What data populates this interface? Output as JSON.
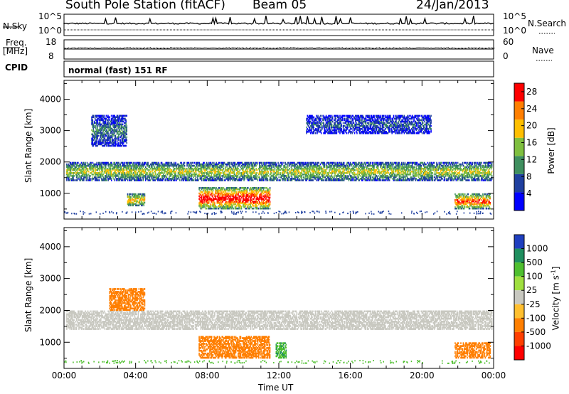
{
  "header": {
    "station": "South Pole Station (fitACF)",
    "beam": "Beam 05",
    "date": "24/Jan/2013"
  },
  "noise_panel": {
    "left_label": "N.Sky",
    "left_ticks": [
      "10^5",
      "10^0"
    ],
    "right_label": "N.Search",
    "right_ticks": [
      "10^5",
      "10^0"
    ]
  },
  "freq_panel": {
    "left_label_line1": "Freq.",
    "left_label_line2": "[MHz]",
    "left_ticks": [
      "18",
      "8"
    ],
    "right_label": "Nave",
    "right_ticks": [
      "60",
      "0"
    ]
  },
  "cpid_panel": {
    "label": "CPID",
    "text": "normal (fast) 151 RF"
  },
  "chart_data": [
    {
      "type": "heatmap",
      "title": "",
      "xlabel": "Time UT",
      "ylabel": "Slant Range [km]",
      "xlim": [
        "00:00",
        "24:00"
      ],
      "ylim": [
        180,
        4600
      ],
      "x_ticks": [
        "00:00",
        "04:00",
        "08:00",
        "12:00",
        "16:00",
        "20:00",
        "00:00"
      ],
      "y_ticks": [
        1000,
        2000,
        3000,
        4000
      ],
      "colorbar": {
        "label": "Power [dB]",
        "ticks": [
          4,
          8,
          12,
          16,
          20,
          24,
          28
        ],
        "range": [
          0,
          30
        ],
        "colors": [
          "#0000ff",
          "#1f3f9f",
          "#3f8f5f",
          "#7fbf3f",
          "#ffbf00",
          "#ff7f00",
          "#ff0000"
        ]
      },
      "regions": [
        {
          "t0": 0.1,
          "t1": 23.9,
          "r0": 1400,
          "r1": 2000,
          "value": 14
        },
        {
          "t0": 1.5,
          "t1": 3.5,
          "r0": 2500,
          "r1": 3500,
          "value": 8
        },
        {
          "t0": 7.5,
          "t1": 11.5,
          "r0": 500,
          "r1": 1200,
          "value": 26
        },
        {
          "t0": 13.5,
          "t1": 20.5,
          "r0": 2900,
          "r1": 3500,
          "value": 6
        },
        {
          "t0": 21.8,
          "t1": 23.8,
          "r0": 500,
          "r1": 1000,
          "value": 22
        },
        {
          "t0": 3.5,
          "t1": 4.5,
          "r0": 600,
          "r1": 1000,
          "value": 18
        }
      ]
    },
    {
      "type": "heatmap",
      "title": "",
      "xlabel": "Time UT",
      "ylabel": "Slant Range [km]",
      "xlim": [
        "00:00",
        "24:00"
      ],
      "ylim": [
        180,
        4600
      ],
      "x_ticks": [
        "00:00",
        "04:00",
        "08:00",
        "12:00",
        "16:00",
        "20:00",
        "00:00"
      ],
      "y_ticks": [
        1000,
        2000,
        3000,
        4000
      ],
      "colorbar": {
        "label": "Velocity [m s^-1]",
        "ticks": [
          "1000",
          "500",
          "100",
          "25",
          "-25",
          "-100",
          "-500",
          "-1000"
        ],
        "colors": [
          "#1f3fbf",
          "#1f8f5f",
          "#4fbf2f",
          "#9fdf3f",
          "#c8c8c0",
          "#ffbf2f",
          "#ff7f00",
          "#ff3f00",
          "#ff0000"
        ]
      },
      "regions": [
        {
          "t0": 0.1,
          "t1": 23.9,
          "r0": 1400,
          "r1": 2000,
          "value": 0
        },
        {
          "t0": 7.5,
          "t1": 11.5,
          "r0": 500,
          "r1": 1200,
          "value": -300
        },
        {
          "t0": 11.8,
          "t1": 12.4,
          "r0": 500,
          "r1": 1000,
          "value": 400
        },
        {
          "t0": 21.8,
          "t1": 23.8,
          "r0": 500,
          "r1": 1000,
          "value": -300
        },
        {
          "t0": 2.5,
          "t1": 4.5,
          "r0": 2000,
          "r1": 2700,
          "value": -200
        }
      ]
    }
  ]
}
